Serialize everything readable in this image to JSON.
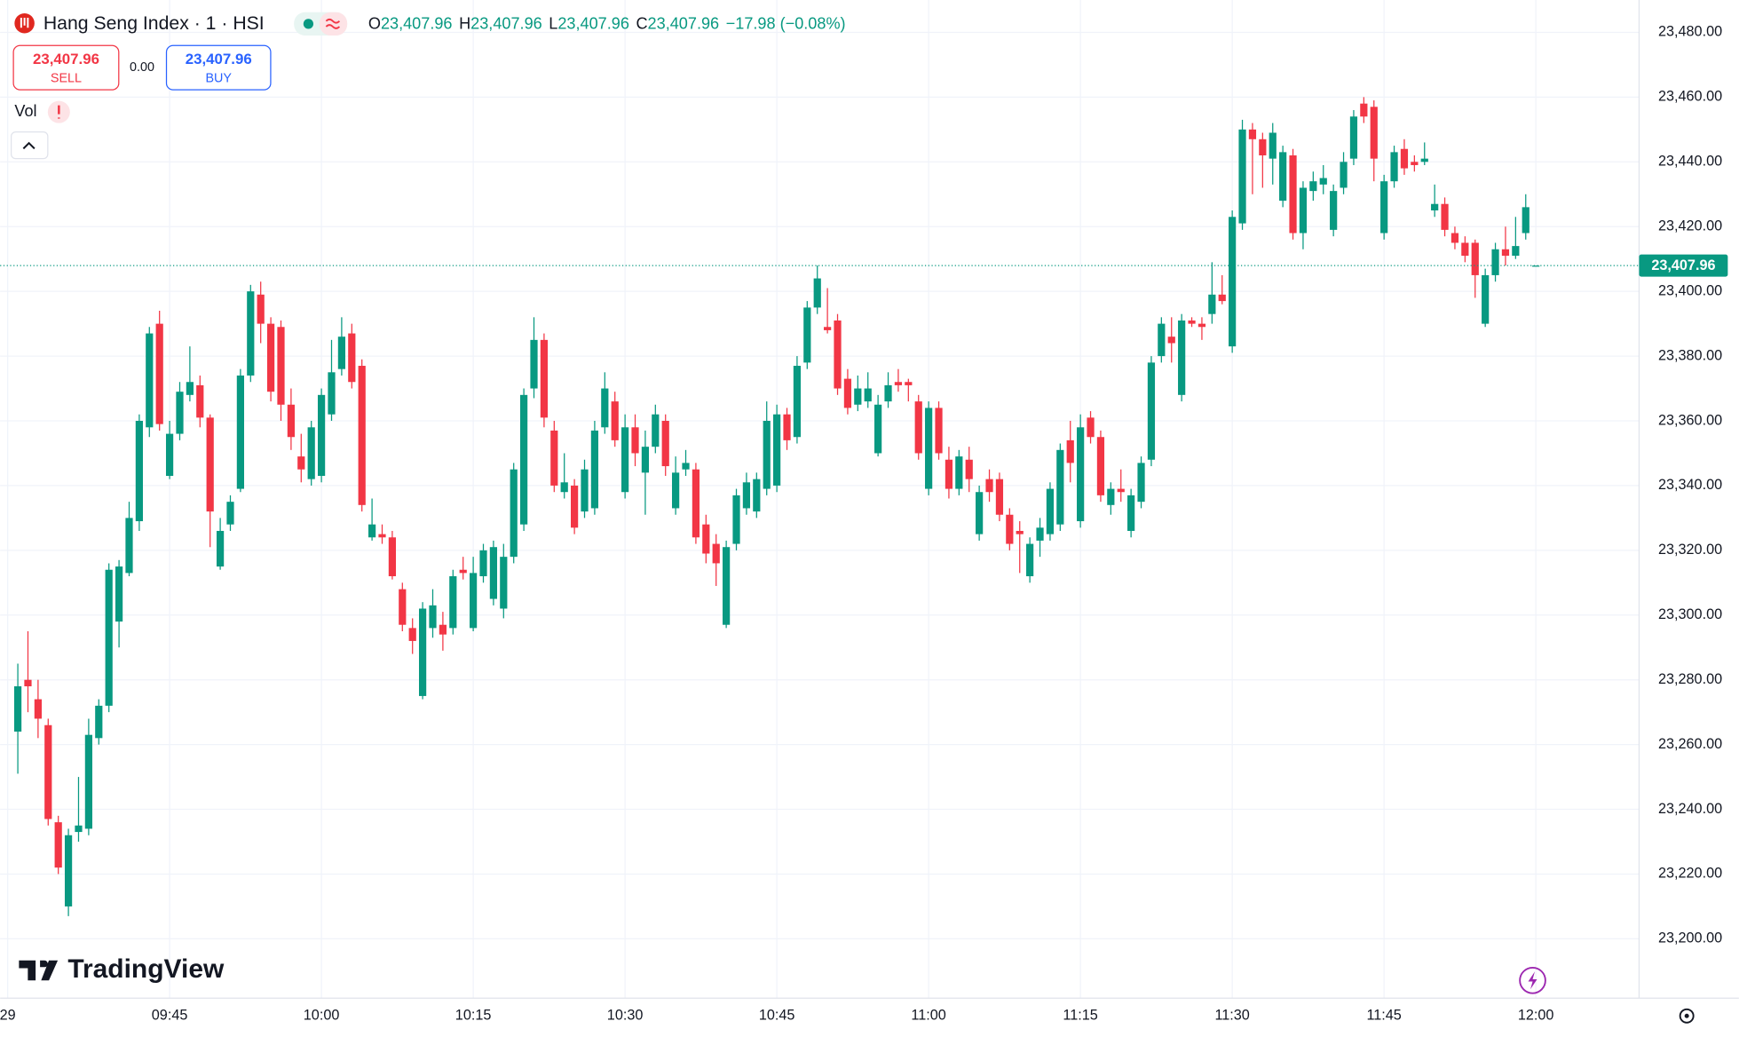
{
  "header": {
    "symbol": "Hang Seng Index · 1 · HSI",
    "ohlc": [
      {
        "label": "O",
        "value": "23,407.96"
      },
      {
        "label": "H",
        "value": "23,407.96"
      },
      {
        "label": "L",
        "value": "23,407.96"
      },
      {
        "label": "C",
        "value": "23,407.96"
      }
    ],
    "change": "−17.98 (−0.08%)",
    "sell": {
      "price": "23,407.96",
      "label": "SELL"
    },
    "spread": "0.00",
    "buy": {
      "price": "23,407.96",
      "label": "BUY"
    },
    "volume": "Vol",
    "brand": "TradingView"
  },
  "chart_data": {
    "type": "candlestick",
    "grid": true,
    "up_color": "#089981",
    "down_color": "#f23645",
    "ylim": [
      23182,
      23490
    ],
    "yticks": [
      {
        "value": 23200,
        "label": "23,200.00"
      },
      {
        "value": 23220,
        "label": "23,220.00"
      },
      {
        "value": 23240,
        "label": "23,240.00"
      },
      {
        "value": 23260,
        "label": "23,260.00"
      },
      {
        "value": 23280,
        "label": "23,280.00"
      },
      {
        "value": 23300,
        "label": "23,300.00"
      },
      {
        "value": 23320,
        "label": "23,320.00"
      },
      {
        "value": 23340,
        "label": "23,340.00"
      },
      {
        "value": 23360,
        "label": "23,360.00"
      },
      {
        "value": 23380,
        "label": "23,380.00"
      },
      {
        "value": 23400,
        "label": "23,400.00"
      },
      {
        "value": 23420,
        "label": "23,420.00"
      },
      {
        "value": 23440,
        "label": "23,440.00"
      },
      {
        "value": 23460,
        "label": "23,460.00"
      },
      {
        "value": 23480,
        "label": "23,480.00"
      }
    ],
    "xlim": [
      -1.75,
      160.2
    ],
    "xticks": [
      {
        "value": -1,
        "label": "29"
      },
      {
        "value": 15,
        "label": "09:45"
      },
      {
        "value": 30,
        "label": "10:00"
      },
      {
        "value": 45,
        "label": "10:15"
      },
      {
        "value": 60,
        "label": "10:30"
      },
      {
        "value": 75,
        "label": "10:45"
      },
      {
        "value": 90,
        "label": "11:00"
      },
      {
        "value": 105,
        "label": "11:15"
      },
      {
        "value": 120,
        "label": "11:30"
      },
      {
        "value": 135,
        "label": "11:45"
      },
      {
        "value": 150,
        "label": "12:00"
      }
    ],
    "last_price": {
      "value": 23407.96,
      "label": "23,407.96"
    },
    "x": [
      0,
      1,
      2,
      3,
      4,
      5,
      6,
      7,
      8,
      9,
      10,
      11,
      12,
      13,
      14,
      15,
      16,
      17,
      18,
      19,
      20,
      21,
      22,
      23,
      24,
      25,
      26,
      27,
      28,
      29,
      30,
      31,
      32,
      33,
      34,
      35,
      36,
      37,
      38,
      39,
      40,
      41,
      42,
      43,
      44,
      45,
      46,
      47,
      48,
      49,
      50,
      51,
      52,
      53,
      54,
      55,
      56,
      57,
      58,
      59,
      60,
      61,
      62,
      63,
      64,
      65,
      66,
      67,
      68,
      69,
      70,
      71,
      72,
      73,
      74,
      75,
      76,
      77,
      78,
      79,
      80,
      81,
      82,
      83,
      84,
      85,
      86,
      87,
      88,
      89,
      90,
      91,
      92,
      93,
      94,
      95,
      96,
      97,
      98,
      99,
      100,
      101,
      102,
      103,
      104,
      105,
      106,
      107,
      108,
      109,
      110,
      111,
      112,
      113,
      114,
      115,
      116,
      117,
      118,
      119,
      120,
      121,
      122,
      123,
      124,
      125,
      126,
      127,
      128,
      129,
      130,
      131,
      132,
      133,
      134,
      135,
      136,
      137,
      138,
      139,
      140,
      141,
      142,
      143,
      144,
      145,
      146,
      147,
      148,
      149,
      150
    ],
    "open": [
      23264,
      23280,
      23274,
      23266,
      23236,
      23210,
      23233,
      23234,
      23262,
      23272,
      23298,
      23313,
      23329,
      23358,
      23390,
      23343,
      23356,
      23368,
      23371,
      23361,
      23315,
      23328,
      23339,
      23374,
      23399,
      23390,
      23389,
      23365,
      23349,
      23342,
      23343,
      23362,
      23376,
      23387,
      23377,
      23324,
      23325,
      23324,
      23308,
      23296,
      23275,
      23296,
      23297,
      23296,
      23314,
      23296,
      23312,
      23305,
      23302,
      23318,
      23328,
      23370,
      23385,
      23357,
      23338,
      23340,
      23332,
      23333,
      23358,
      23366,
      23338,
      23358,
      23344,
      23352,
      23360,
      23333,
      23345,
      23345,
      23328,
      23322,
      23297,
      23322,
      23333,
      23332,
      23339,
      23340,
      23362,
      23355,
      23378,
      23395,
      23389,
      23391,
      23373,
      23365,
      23366,
      23350,
      23366,
      23372,
      23372,
      23366,
      23339,
      23364,
      23348,
      23339,
      23348,
      23325,
      23342,
      23342,
      23331,
      23326,
      23312,
      23323,
      23325,
      23328,
      23354,
      23329,
      23361,
      23355,
      23334,
      23339,
      23326,
      23335,
      23348,
      23380,
      23386,
      23368,
      23391,
      23390,
      23393,
      23399,
      23383,
      23421,
      23450,
      23447,
      23441,
      23428,
      23442,
      23418,
      23431,
      23433,
      23419,
      23432,
      23441,
      23458,
      23457,
      23418,
      23434,
      23444,
      23440,
      23440,
      23425,
      23427,
      23418,
      23415,
      23415,
      23390,
      23405,
      23413,
      23411,
      23418,
      23407.96
    ],
    "high": [
      23285,
      23295,
      23280,
      23268,
      23238,
      23234,
      23250,
      23268,
      23274,
      23316,
      23317,
      23335,
      23362,
      23389,
      23394,
      23360,
      23372,
      23383,
      23374,
      23362,
      23330,
      23337,
      23376,
      23402,
      23403,
      23392,
      23391,
      23370,
      23356,
      23360,
      23370,
      23385,
      23392,
      23390,
      23379,
      23336,
      23328,
      23326,
      23310,
      23299,
      23304,
      23308,
      23301,
      23314,
      23318,
      23318,
      23322,
      23323,
      23322,
      23347,
      23370,
      23392,
      23387,
      23360,
      23350,
      23342,
      23348,
      23360,
      23375,
      23369,
      23362,
      23362,
      23357,
      23365,
      23362,
      23349,
      23351,
      23347,
      23331,
      23325,
      23323,
      23339,
      23344,
      23344,
      23366,
      23365,
      23364,
      23380,
      23397,
      23408,
      23401,
      23393,
      23376,
      23374,
      23375,
      23368,
      23375,
      23376,
      23373,
      23368,
      23366,
      23366,
      23352,
      23351,
      23352,
      23340,
      23345,
      23344,
      23333,
      23329,
      23324,
      23330,
      23341,
      23353,
      23360,
      23362,
      23363,
      23357,
      23341,
      23345,
      23339,
      23349,
      23380,
      23392,
      23392,
      23393,
      23392,
      23392,
      23409,
      23405,
      23425,
      23453,
      23452,
      23449,
      23452,
      23445,
      23444,
      23434,
      23437,
      23439,
      23433,
      23443,
      23456,
      23460,
      23459,
      23436,
      23445,
      23447,
      23442,
      23446,
      23433,
      23429,
      23420,
      23417,
      23416,
      23407,
      23415,
      23420,
      23423,
      23430,
      23407.96
    ],
    "low": [
      23251,
      23270,
      23262,
      23235,
      23220,
      23207,
      23230,
      23232,
      23260,
      23270,
      23290,
      23312,
      23326,
      23355,
      23357,
      23342,
      23354,
      23366,
      23358,
      23321,
      23314,
      23326,
      23338,
      23372,
      23384,
      23366,
      23360,
      23351,
      23341,
      23340,
      23341,
      23360,
      23374,
      23370,
      23332,
      23323,
      23322,
      23311,
      23295,
      23288,
      23274,
      23293,
      23289,
      23294,
      23311,
      23295,
      23310,
      23303,
      23299,
      23316,
      23326,
      23367,
      23358,
      23338,
      23336,
      23325,
      23330,
      23331,
      23356,
      23352,
      23336,
      23346,
      23331,
      23350,
      23343,
      23331,
      23343,
      23322,
      23316,
      23309,
      23296,
      23320,
      23331,
      23330,
      23337,
      23338,
      23351,
      23353,
      23376,
      23393,
      23387,
      23368,
      23362,
      23363,
      23364,
      23349,
      23364,
      23369,
      23366,
      23348,
      23337,
      23348,
      23336,
      23337,
      23338,
      23323,
      23335,
      23329,
      23320,
      23313,
      23310,
      23318,
      23323,
      23326,
      23341,
      23327,
      23353,
      23335,
      23331,
      23335,
      23324,
      23333,
      23346,
      23378,
      23378,
      23366,
      23389,
      23385,
      23390,
      23396,
      23381,
      23419,
      23430,
      23432,
      23433,
      23426,
      23416,
      23413,
      23428,
      23430,
      23417,
      23430,
      23439,
      23452,
      23434,
      23416,
      23432,
      23436,
      23437,
      23439,
      23423,
      23417,
      23413,
      23409,
      23398,
      23389,
      23403,
      23408,
      23410,
      23416,
      23407.96
    ],
    "close": [
      23278,
      23278,
      23268,
      23237,
      23222,
      23232,
      23235,
      23263,
      23272,
      23314,
      23315,
      23330,
      23360,
      23387,
      23359,
      23356,
      23369,
      23372,
      23361,
      23332,
      23326,
      23335,
      23374,
      23400,
      23390,
      23369,
      23365,
      23355,
      23345,
      23358,
      23368,
      23375,
      23386,
      23372,
      23334,
      23328,
      23324,
      23312,
      23297,
      23292,
      23302,
      23303,
      23294,
      23312,
      23313,
      23313,
      23320,
      23321,
      23318,
      23345,
      23368,
      23385,
      23361,
      23340,
      23341,
      23327,
      23345,
      23357,
      23370,
      23354,
      23358,
      23350,
      23352,
      23362,
      23346,
      23344,
      23347,
      23324,
      23319,
      23316,
      23321,
      23337,
      23341,
      23342,
      23360,
      23362,
      23354,
      23377,
      23395,
      23404,
      23388,
      23370,
      23364,
      23370,
      23370,
      23365,
      23371,
      23371,
      23371,
      23350,
      23364,
      23350,
      23339,
      23349,
      23342,
      23338,
      23338,
      23331,
      23322,
      23325,
      23322,
      23327,
      23339,
      23351,
      23347,
      23358,
      23355,
      23337,
      23339,
      23338,
      23337,
      23347,
      23378,
      23390,
      23384,
      23391,
      23390,
      23389,
      23399,
      23397,
      23423,
      23450,
      23447,
      23442,
      23449,
      23443,
      23418,
      23432,
      23434,
      23435,
      23431,
      23440,
      23454,
      23454,
      23441,
      23434,
      23443,
      23438,
      23439,
      23441,
      23427,
      23419,
      23415,
      23411,
      23405,
      23405,
      23413,
      23411,
      23414,
      23426,
      23407.96
    ]
  }
}
